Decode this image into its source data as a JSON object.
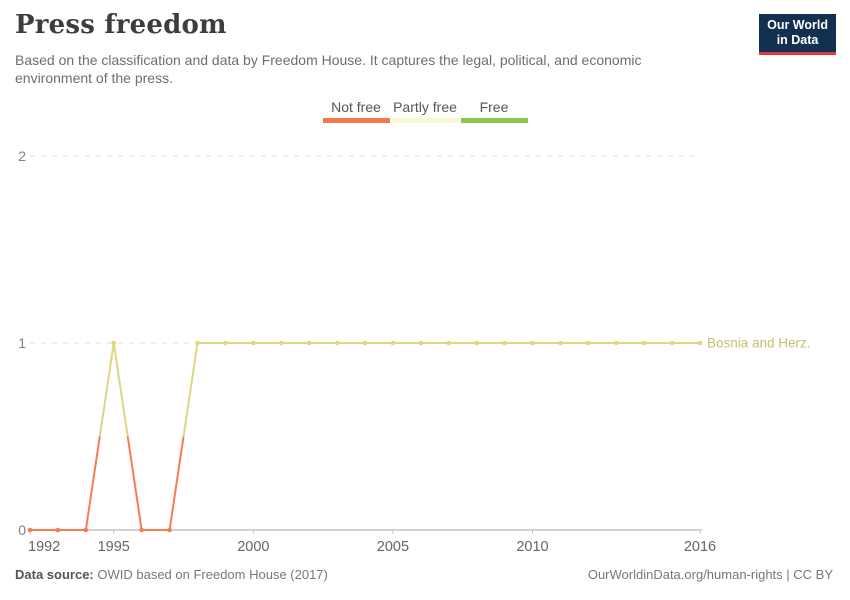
{
  "header": {
    "title": "Press freedom",
    "subtitle_line1": "Based on the classification and data by Freedom House. It captures the legal, political, and economic",
    "subtitle_line2": "environment of the press.",
    "logo": {
      "line1": "Our World",
      "line2": "in Data"
    }
  },
  "brand": {
    "logo_bg": "#12304f",
    "logo_accent": "#e0383e"
  },
  "legend": {
    "items": [
      {
        "label": "Not free",
        "color": "#f2794b"
      },
      {
        "label": "Partly free",
        "color": "#f9f9cf"
      },
      {
        "label": "Free",
        "color": "#8bc751"
      }
    ]
  },
  "chart_data": {
    "type": "line",
    "title": "Press freedom",
    "xlabel": "",
    "ylabel": "",
    "xlim": [
      1992,
      2016
    ],
    "ylim": [
      0,
      2
    ],
    "xticks": [
      1992,
      1995,
      2000,
      2005,
      2010,
      2016
    ],
    "yticks": [
      0,
      1,
      2
    ],
    "grid": "horizontal-dashed",
    "category_labels": {
      "0": "Not free",
      "1": "Partly free",
      "2": "Free"
    },
    "value_colors": {
      "0": "#f47d52",
      "1": "#dcd881"
    },
    "entity_label": "Bosnia and Herz.",
    "entity_label_color": "#c3c06f",
    "series": [
      {
        "name": "Bosnia and Herz.",
        "x": [
          1992,
          1993,
          1994,
          1995,
          1996,
          1997,
          1998,
          1999,
          2000,
          2001,
          2002,
          2003,
          2004,
          2005,
          2006,
          2007,
          2008,
          2009,
          2010,
          2011,
          2012,
          2013,
          2014,
          2015,
          2016
        ],
        "values": [
          0,
          0,
          0,
          1,
          0,
          0,
          1,
          1,
          1,
          1,
          1,
          1,
          1,
          1,
          1,
          1,
          1,
          1,
          1,
          1,
          1,
          1,
          1,
          1,
          1
        ]
      }
    ]
  },
  "footer": {
    "source_label": "Data source:",
    "source_text": " OWID based on Freedom House (2017)",
    "link_text": "OurWorldinData.org/human-rights | CC BY"
  }
}
